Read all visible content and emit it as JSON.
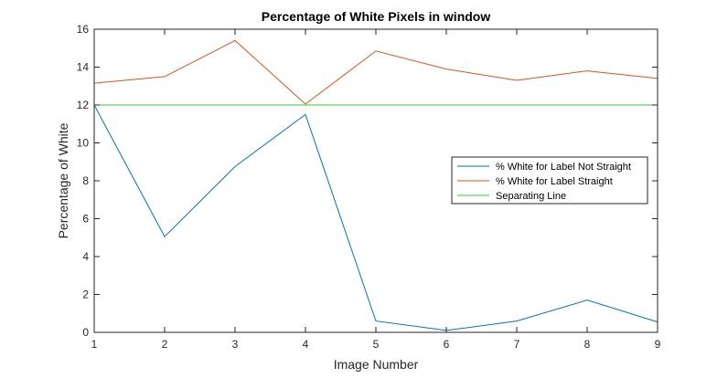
{
  "chart_data": {
    "type": "line",
    "title": "Percentage of White Pixels in window",
    "xlabel": "Image Number",
    "ylabel": "Percentage of White",
    "x": [
      1,
      2,
      3,
      4,
      5,
      6,
      7,
      8,
      9
    ],
    "xlim": [
      1,
      9
    ],
    "ylim": [
      0,
      16
    ],
    "xticks": [
      "1",
      "2",
      "3",
      "4",
      "5",
      "6",
      "7",
      "8",
      "9"
    ],
    "yticks": [
      "0",
      "2",
      "4",
      "6",
      "8",
      "10",
      "12",
      "14",
      "16"
    ],
    "grid": false,
    "legend_position": "right",
    "series": [
      {
        "name": "% White for Label Not Straight",
        "color": "#0072bd",
        "values": [
          12.0,
          5.05,
          8.75,
          11.5,
          0.6,
          0.1,
          0.6,
          1.7,
          0.55
        ]
      },
      {
        "name": "% White for Label Straight",
        "color": "#d95319",
        "values": [
          13.15,
          13.5,
          15.4,
          12.05,
          14.85,
          13.9,
          13.3,
          13.8,
          13.4
        ]
      },
      {
        "name": "Separating Line",
        "color": "#33cc33",
        "values": [
          12,
          12,
          12,
          12,
          12,
          12,
          12,
          12,
          12
        ]
      }
    ]
  }
}
